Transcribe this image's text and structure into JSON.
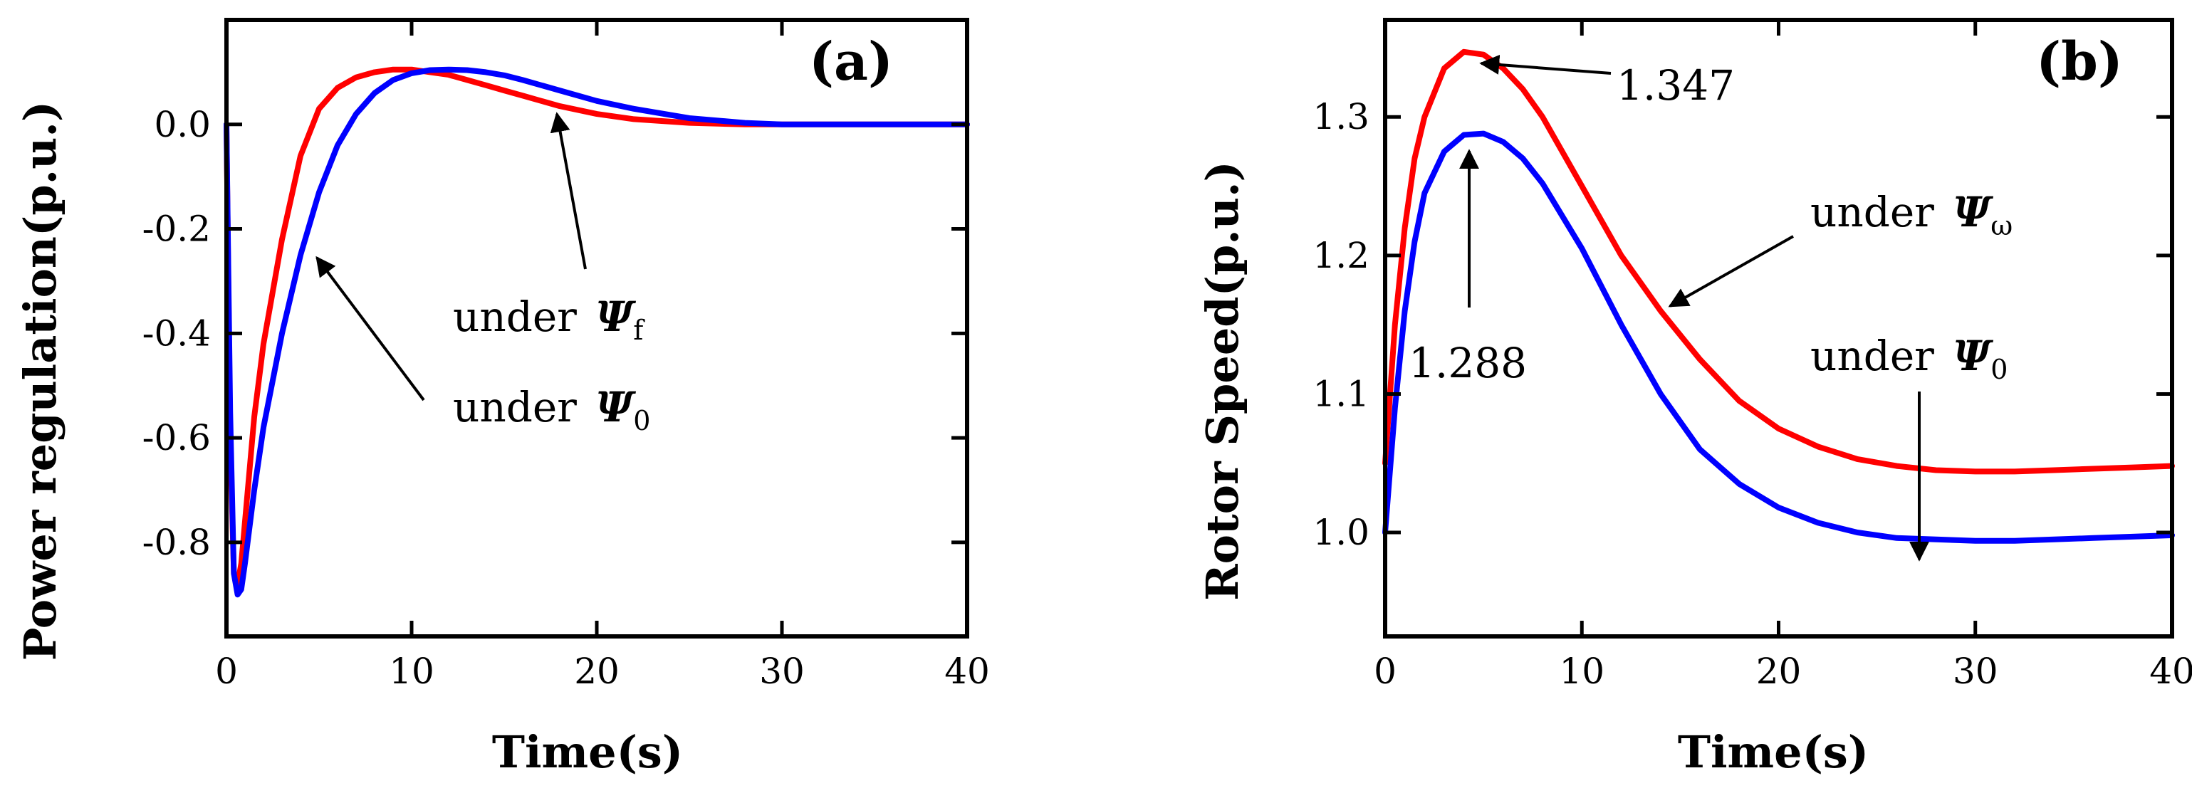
{
  "chart_data": [
    {
      "type": "line",
      "panel_label": "(a)",
      "xlabel": "Time(s)",
      "ylabel": "Power regulation(p.u.)",
      "xlim": [
        0,
        40
      ],
      "ylim": [
        -0.98,
        0.2
      ],
      "x_ticks": [
        0,
        10,
        20,
        30,
        40
      ],
      "x_tick_labels": [
        "0",
        "10",
        "20",
        "30",
        "40"
      ],
      "y_ticks": [
        -0.8,
        -0.6,
        -0.4,
        -0.2,
        0.0
      ],
      "y_tick_labels": [
        "-0.8",
        "-0.6",
        "-0.4",
        "-0.2",
        "0.0"
      ],
      "grid": false,
      "series": [
        {
          "name": "under Ψf",
          "color": "#ff0000",
          "x": [
            0,
            0.2,
            0.4,
            0.6,
            0.8,
            1,
            1.5,
            2,
            3,
            4,
            5,
            6,
            7,
            8,
            9,
            10,
            11,
            12,
            13,
            14,
            15,
            16,
            18,
            20,
            22,
            25,
            28,
            30,
            35,
            40
          ],
          "y": [
            0,
            -0.6,
            -0.86,
            -0.88,
            -0.84,
            -0.76,
            -0.56,
            -0.42,
            -0.22,
            -0.06,
            0.03,
            0.07,
            0.09,
            0.1,
            0.105,
            0.105,
            0.1,
            0.095,
            0.085,
            0.075,
            0.065,
            0.055,
            0.035,
            0.02,
            0.01,
            0.003,
            0,
            0,
            0,
            0
          ]
        },
        {
          "name": "under Ψ0",
          "color": "#0000ff",
          "x": [
            0,
            0.2,
            0.4,
            0.6,
            0.8,
            1,
            1.5,
            2,
            3,
            4,
            5,
            6,
            7,
            8,
            9,
            10,
            11,
            12,
            13,
            14,
            15,
            16,
            18,
            20,
            22,
            25,
            28,
            30,
            35,
            40
          ],
          "y": [
            0,
            -0.55,
            -0.86,
            -0.9,
            -0.89,
            -0.84,
            -0.7,
            -0.58,
            -0.4,
            -0.25,
            -0.13,
            -0.04,
            0.02,
            0.06,
            0.085,
            0.098,
            0.104,
            0.105,
            0.104,
            0.1,
            0.094,
            0.085,
            0.065,
            0.045,
            0.03,
            0.012,
            0.003,
            0,
            0,
            0
          ]
        }
      ],
      "annotations": [
        {
          "text": "under ",
          "symbol": "Ψ",
          "subscript": "f"
        },
        {
          "text": "under ",
          "symbol": "Ψ",
          "subscript": "0"
        }
      ]
    },
    {
      "type": "line",
      "panel_label": "(b)",
      "xlabel": "Time(s)",
      "ylabel": "Rotor Speed(p.u.)",
      "xlim": [
        0,
        40
      ],
      "ylim": [
        0.925,
        1.37
      ],
      "x_ticks": [
        0,
        10,
        20,
        30,
        40
      ],
      "x_tick_labels": [
        "0",
        "10",
        "20",
        "30",
        "40"
      ],
      "y_ticks": [
        1.0,
        1.1,
        1.2,
        1.3
      ],
      "y_tick_labels": [
        "1.0",
        "1.1",
        "1.2",
        "1.3"
      ],
      "grid": false,
      "series": [
        {
          "name": "under Ψω",
          "color": "#ff0000",
          "x": [
            0,
            0.5,
            1,
            1.5,
            2,
            3,
            4,
            5,
            6,
            7,
            8,
            10,
            12,
            14,
            16,
            18,
            20,
            22,
            24,
            26,
            28,
            30,
            32,
            34,
            36,
            38,
            40
          ],
          "y": [
            1.05,
            1.15,
            1.22,
            1.27,
            1.3,
            1.335,
            1.347,
            1.345,
            1.335,
            1.32,
            1.3,
            1.25,
            1.2,
            1.16,
            1.125,
            1.095,
            1.075,
            1.062,
            1.053,
            1.048,
            1.045,
            1.044,
            1.044,
            1.045,
            1.046,
            1.047,
            1.048
          ]
        },
        {
          "name": "under Ψ0",
          "color": "#0000ff",
          "x": [
            0,
            0.5,
            1,
            1.5,
            2,
            3,
            4,
            5,
            6,
            7,
            8,
            10,
            12,
            14,
            16,
            18,
            20,
            22,
            24,
            26,
            28,
            30,
            32,
            34,
            36,
            38,
            40
          ],
          "y": [
            1.0,
            1.09,
            1.16,
            1.21,
            1.245,
            1.275,
            1.287,
            1.288,
            1.282,
            1.27,
            1.252,
            1.205,
            1.15,
            1.1,
            1.06,
            1.035,
            1.018,
            1.007,
            1.0,
            0.996,
            0.995,
            0.994,
            0.994,
            0.995,
            0.996,
            0.997,
            0.998
          ]
        }
      ],
      "annotations": [
        {
          "text": "1.347"
        },
        {
          "text": "1.288"
        },
        {
          "text": "under ",
          "symbol": "Ψ",
          "subscript": "ω"
        },
        {
          "text": "under ",
          "symbol": "Ψ",
          "subscript": "0"
        }
      ]
    }
  ]
}
